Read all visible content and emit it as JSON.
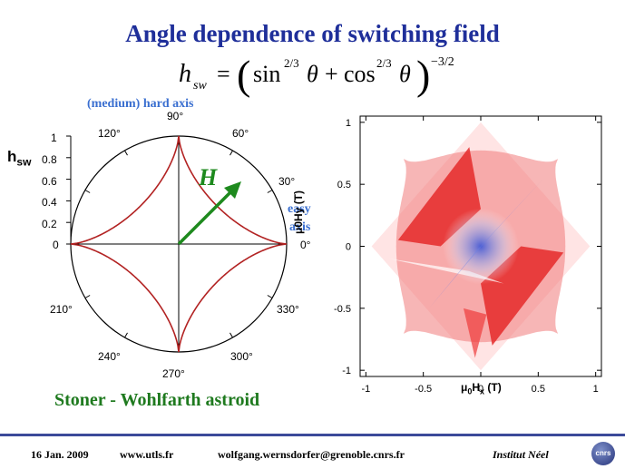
{
  "title": "Angle dependence of switching field",
  "formula": {
    "lhs": "h",
    "lhs_sub": "sw",
    "eq": "=",
    "sin": "sin",
    "cos": "cos",
    "power": "2/3",
    "theta": "θ",
    "plus": "+",
    "outer_power": "−3/2"
  },
  "polar_plot": {
    "hard_axis_label": "(medium) hard axis",
    "easy_axis_label_1": "easy",
    "easy_axis_label_2": "axis",
    "ylabel": "h",
    "ylabel_sub": "sw",
    "field_label": "H",
    "r_ticks": [
      "1",
      "0.8",
      "0.6",
      "0.4",
      "0.2",
      "0"
    ],
    "angle_labels": {
      "a0": "0°",
      "a30": "30°",
      "a60": "60°",
      "a90": "90°",
      "a120": "120°",
      "a210": "210°",
      "a240": "240°",
      "a270": "270°",
      "a300": "300°",
      "a330": "330°"
    },
    "caption": "Stoner - Wohlfarth astroid",
    "curve_color": "#b22222",
    "arrow_color": "#1e8a1e"
  },
  "map_plot": {
    "x_ticks": [
      "-1",
      "-0.5",
      "0",
      "0.5",
      "1"
    ],
    "y_ticks": [
      "1",
      "0.5",
      "0",
      "-0.5",
      "-1"
    ],
    "xlabel_mu": "μ",
    "xlabel_sub0": "0",
    "xlabel_h": "H",
    "xlabel_subx": "x",
    "xlabel_unit": "(T)",
    "ylabel_text": "μ0Hy (T)",
    "colors": {
      "positive": "#e02020",
      "negative": "#3a56d8"
    }
  },
  "footer": {
    "date": "16 Jan. 2009",
    "website": "www.utls.fr",
    "email": "wolfgang.wernsdorfer@grenoble.cnrs.fr",
    "institute": "Institut Néel",
    "logo_text": "cnrs"
  },
  "chart_data": [
    {
      "type": "line",
      "title": "",
      "description_curve": "h_sw(θ) = (sin^(2/3)θ + cos^(2/3)θ)^(-3/2), polar plot",
      "r_range": [
        0,
        1
      ],
      "r_ticks": [
        0,
        0.2,
        0.4,
        0.6,
        0.8,
        1
      ],
      "angle_ticks_deg": [
        0,
        30,
        60,
        90,
        120,
        210,
        240,
        270,
        300,
        330
      ],
      "series": [
        {
          "values_theta_deg": [
            0,
            15,
            30,
            45,
            60,
            75,
            90
          ],
          "values_r": [
            1,
            0.62,
            0.53,
            0.5,
            0.53,
            0.62,
            1
          ]
        }
      ]
    },
    {
      "type": "heatmap",
      "title": "",
      "xlim": [
        -1.05,
        1.05
      ],
      "ylim": [
        -1.05,
        1.05
      ],
      "x_ticks": [
        -1,
        -0.5,
        0,
        0.5,
        1
      ],
      "y_ticks": [
        -1,
        -0.5,
        0,
        0.5,
        1
      ]
    }
  ]
}
